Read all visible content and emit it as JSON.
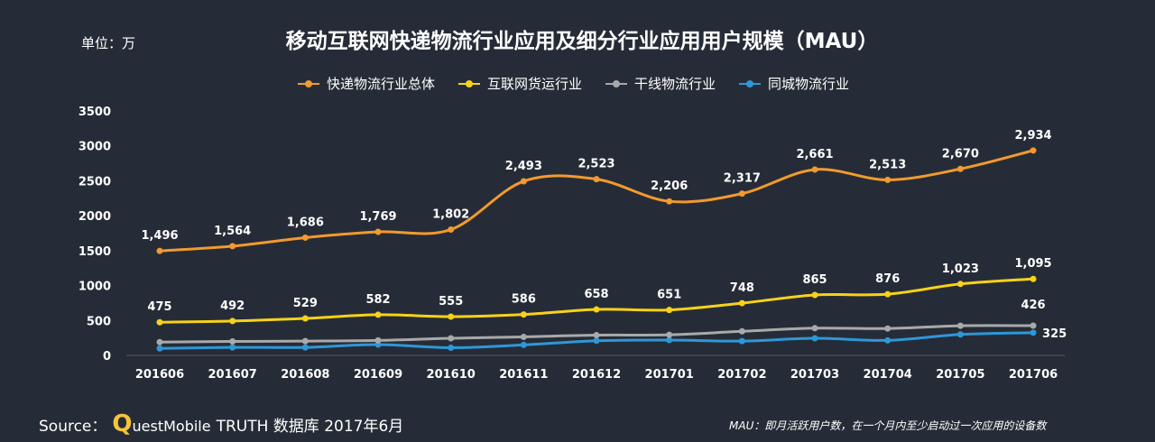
{
  "header": {
    "unit": "单位：万",
    "title": "移动互联网快递物流行业应用及细分行业应用用户规模（MAU）"
  },
  "chart_data": {
    "type": "line",
    "title": "移动互联网快递物流行业应用及细分行业应用用户规模（MAU）",
    "ylabel": "单位：万",
    "ylim": [
      0,
      3500
    ],
    "yticks": [
      0,
      500,
      1000,
      1500,
      2000,
      2500,
      3000,
      3500
    ],
    "categories": [
      "201606",
      "201607",
      "201608",
      "201609",
      "201610",
      "201611",
      "201612",
      "201701",
      "201702",
      "201703",
      "201704",
      "201705",
      "201706"
    ],
    "series": [
      {
        "name": "快递物流行业总体",
        "color": "#f29a2e",
        "labels": "all",
        "values": [
          1496,
          1564,
          1686,
          1769,
          1802,
          2493,
          2523,
          2206,
          2317,
          2661,
          2513,
          2670,
          2934
        ]
      },
      {
        "name": "互联网货运行业",
        "color": "#f7d21a",
        "labels": "all",
        "values": [
          475,
          492,
          529,
          582,
          555,
          586,
          658,
          651,
          748,
          865,
          876,
          1023,
          1095
        ]
      },
      {
        "name": "干线物流行业",
        "color": "#a9a9a9",
        "labels": "last",
        "values": [
          190,
          200,
          205,
          215,
          245,
          265,
          290,
          295,
          345,
          390,
          385,
          425,
          426
        ]
      },
      {
        "name": "同城物流行业",
        "color": "#2e97d8",
        "labels": "last",
        "values": [
          100,
          115,
          115,
          155,
          110,
          150,
          210,
          220,
          205,
          245,
          215,
          300,
          325
        ]
      }
    ]
  },
  "source": {
    "prefix": "Source：",
    "brand_q": "Q",
    "brand_rest": "uestMobile",
    "suffix": "TRUTH 数据库 2017年6月"
  },
  "footnote": "MAU：即月活跃用户数，在一个月内至少启动过一次应用的设备数"
}
